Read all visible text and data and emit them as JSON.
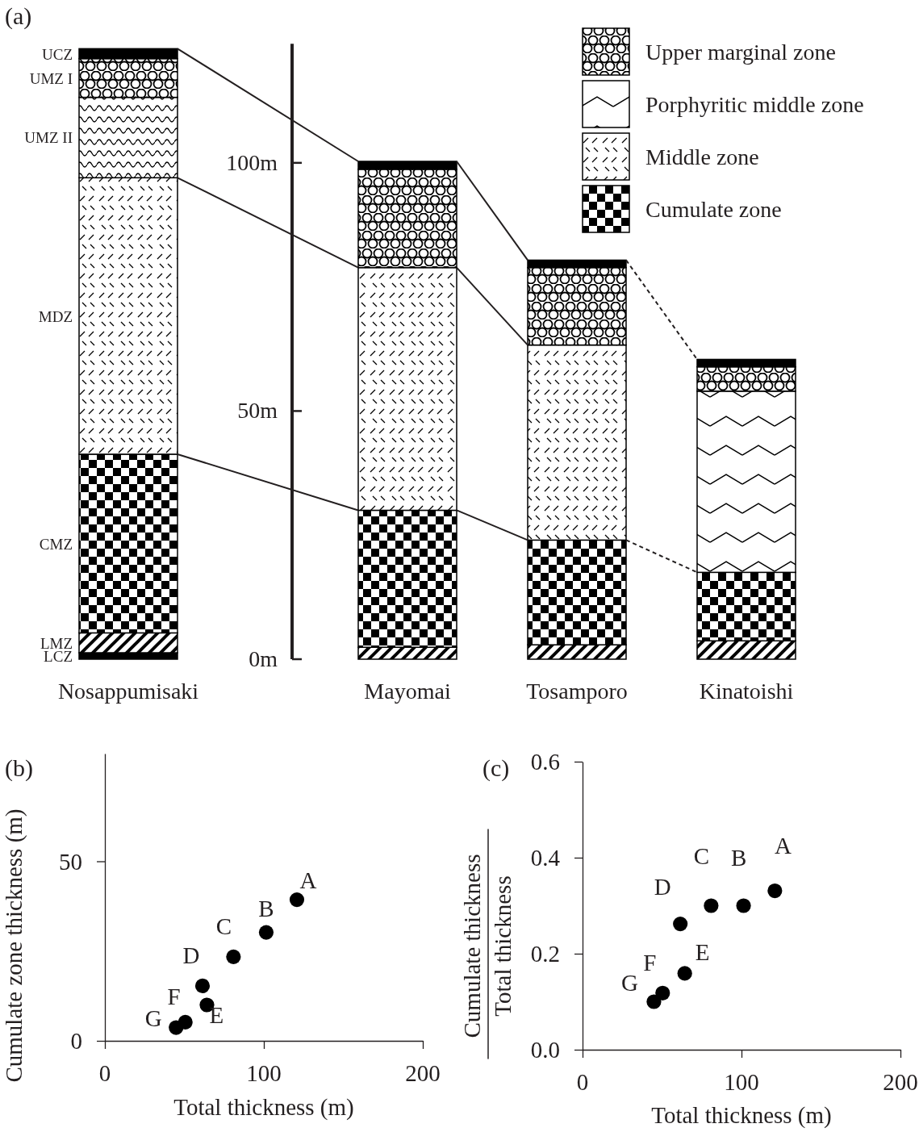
{
  "chart_data": [
    {
      "type": "bar",
      "title": "(a)",
      "stacked": true,
      "categories": [
        "Nosappumisaki",
        "Mayomai",
        "Tosamporo",
        "Kinatoishi"
      ],
      "series": [
        {
          "color": "#000000",
          "values": [
            1.3,
            null,
            null,
            null
          ]
        },
        {
          "color": "#000000",
          "values": [
            4,
            2.4,
            2.9,
            3.7
          ]
        },
        {
          "name": "Cumulate zone",
          "color": "#000000",
          "values": [
            36,
            27.6,
            21.1,
            13.8
          ]
        },
        {
          "name": "Middle zone",
          "color": "#000000",
          "values": [
            55.7,
            48.9,
            39.3,
            null
          ]
        },
        {
          "name": "Porphyritic middle zone",
          "color": "#000000",
          "values": [
            null,
            null,
            null,
            36.5
          ]
        },
        {
          "color": "#000000",
          "values": [
            16.2,
            null,
            null,
            null
          ]
        },
        {
          "name": "Upper marginal zone",
          "color": "#000000",
          "values": [
            7.8,
            19.8,
            15.6,
            4.9
          ]
        },
        {
          "color": "#000000",
          "values": [
            2,
            1.6,
            1.5,
            1.5
          ]
        }
      ],
      "ylim": [
        0,
        124
      ],
      "yticks": [
        {
          "value": 0,
          "label": "0m"
        },
        {
          "value": 50,
          "label": "50m"
        },
        {
          "value": 100,
          "label": "100m"
        }
      ],
      "legend": "top right",
      "annotations": [
        "UCZ",
        "UMZ I",
        "UMZ II",
        "MDZ",
        "CMZ",
        "LMZ",
        "LCZ"
      ]
    },
    {
      "type": "scatter",
      "title": "(b)",
      "x": [
        120.8,
        101.5,
        80.9,
        61.4,
        64.2,
        50.6,
        44.8
      ],
      "values": [
        39.3,
        30.2,
        23.4,
        15.3,
        10,
        5.2,
        3.7
      ],
      "color": "#000000",
      "marker": "circle",
      "xlim": [
        0,
        200
      ],
      "ylim": [
        0,
        80
      ],
      "xticks": [
        0,
        100,
        200
      ],
      "yticks": [
        0,
        50
      ],
      "xlabel": "Total thickness (m)",
      "ylabel": "Cumulate zone thickness (m)",
      "annotations": [
        {
          "text": "A",
          "x": 120.8,
          "y": 39.3
        },
        {
          "text": "B",
          "x": 101.5,
          "y": 30.2
        },
        {
          "text": "C",
          "x": 80.9,
          "y": 23.4
        },
        {
          "text": "D",
          "x": 61.4,
          "y": 15.3
        },
        {
          "text": "E",
          "x": 64.2,
          "y": 10
        },
        {
          "text": "F",
          "x": 50.6,
          "y": 5.2
        },
        {
          "text": "G",
          "x": 44.8,
          "y": 3.7
        }
      ]
    },
    {
      "type": "scatter",
      "title": "(c)",
      "x": [
        121,
        101.3,
        80.9,
        61.5,
        64.3,
        50.4,
        44.9
      ],
      "values": [
        0.331,
        0.3,
        0.3,
        0.262,
        0.159,
        0.118,
        0.1
      ],
      "color": "#000000",
      "marker": "circle",
      "xlim": [
        0,
        200
      ],
      "ylim": [
        0,
        0.6
      ],
      "xticks": [
        0,
        100,
        200
      ],
      "yticks": [
        {
          "value": 0,
          "label": "0.0"
        },
        {
          "value": 0.2,
          "label": "0.2"
        },
        {
          "value": 0.4,
          "label": "0.4"
        },
        {
          "value": 0.6,
          "label": "0.6"
        }
      ],
      "xlabel": "Total thickness (m)",
      "ylabel": "Cumulate thickness\nTotal thickness",
      "annotations": [
        {
          "text": "A",
          "x": 121,
          "y": 0.331
        },
        {
          "text": "B",
          "x": 101.3,
          "y": 0.3
        },
        {
          "text": "C",
          "x": 80.9,
          "y": 0.3
        },
        {
          "text": "D",
          "x": 61.5,
          "y": 0.262
        },
        {
          "text": "E",
          "x": 64.3,
          "y": 0.159
        },
        {
          "text": "F",
          "x": 50.4,
          "y": 0.118
        },
        {
          "text": "G",
          "x": 44.9,
          "y": 0.1
        }
      ]
    }
  ]
}
